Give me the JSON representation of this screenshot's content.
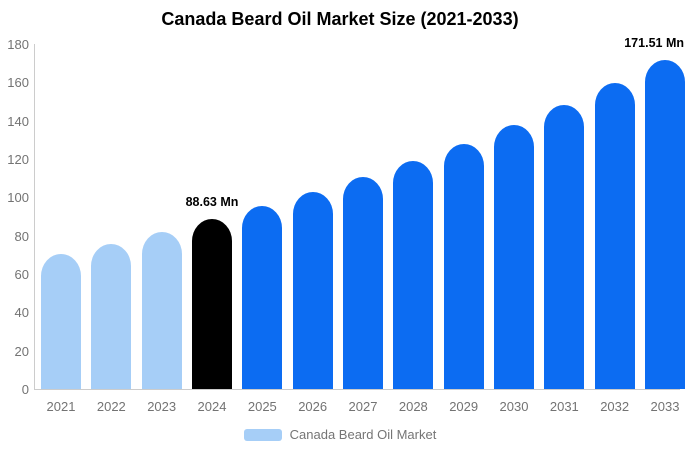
{
  "title": "Canada Beard Oil Market Size (2021-2033)",
  "legend": {
    "label": "Canada Beard Oil Market"
  },
  "colors": {
    "historical": "#A6CEF7",
    "current": "#000000",
    "forecast": "#0C6CF2",
    "axis_line": "#CCCCCC",
    "tick_text": "#737373",
    "legend_text": "#757575",
    "title_text": "#000000",
    "background": "#FFFFFF"
  },
  "chart_data": {
    "type": "bar",
    "title": "Canada Beard Oil Market Size (2021-2033)",
    "unit": "Mn",
    "series_name": "Canada Beard Oil Market",
    "categories": [
      "2021",
      "2022",
      "2023",
      "2024",
      "2025",
      "2026",
      "2027",
      "2028",
      "2029",
      "2030",
      "2031",
      "2032",
      "2033"
    ],
    "values": [
      70.2,
      75.5,
      82.0,
      88.63,
      95.4,
      102.6,
      110.4,
      118.8,
      127.9,
      137.6,
      148.1,
      159.4,
      171.51
    ],
    "bar_roles": [
      "historical",
      "historical",
      "historical",
      "current",
      "forecast",
      "forecast",
      "forecast",
      "forecast",
      "forecast",
      "forecast",
      "forecast",
      "forecast",
      "forecast"
    ],
    "labeled_points": {
      "2024": "88.63 Mn",
      "2033": "171.51 Mn"
    },
    "xlabel": "",
    "ylabel": "",
    "ylim": [
      0,
      180
    ],
    "yticks": [
      0,
      20,
      40,
      60,
      80,
      100,
      120,
      140,
      160,
      180
    ],
    "grid": false,
    "legend_position": "bottom"
  }
}
